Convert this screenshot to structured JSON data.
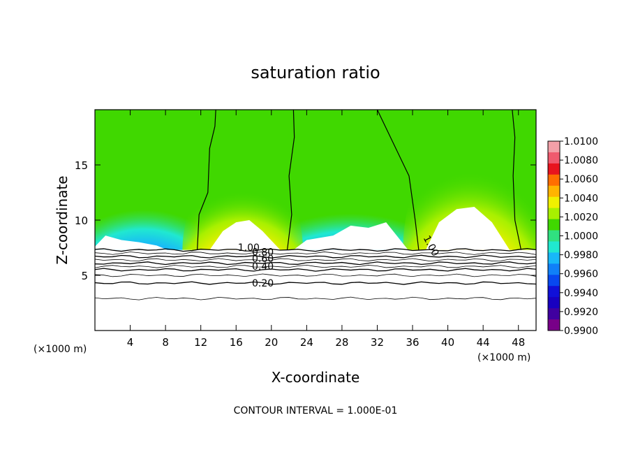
{
  "chart_data": {
    "type": "heatmap",
    "title": "saturation ratio",
    "xlabel": "X-coordinate",
    "ylabel": "Z-coordinate",
    "x_unit": "(×1000 m)",
    "y_unit": "(×1000 m)",
    "xlim": [
      0,
      50
    ],
    "ylim": [
      0,
      20
    ],
    "x_ticks": [
      4,
      8,
      12,
      16,
      20,
      24,
      28,
      32,
      36,
      40,
      44,
      48
    ],
    "y_ticks": [
      5,
      10,
      15
    ],
    "colorbar": {
      "ticks": [
        "1.0100",
        "1.0080",
        "1.0060",
        "1.0040",
        "1.0020",
        "1.0000",
        "0.9980",
        "0.9960",
        "0.9940",
        "0.9920",
        "0.9900"
      ],
      "colors": [
        "#f2a0a8",
        "#f05a6e",
        "#e8141e",
        "#ff6e00",
        "#ffb400",
        "#f0f000",
        "#a8f000",
        "#40d800",
        "#30e080",
        "#20e8d0",
        "#18b8f8",
        "#1080f8",
        "#0848f0",
        "#1010d8",
        "#1800c0",
        "#4000a0",
        "#780088"
      ]
    },
    "contour_labels": [
      {
        "text": "1.00",
        "x": 16.2,
        "z": 7.2
      },
      {
        "text": "0.80",
        "x": 17.8,
        "z": 6.8
      },
      {
        "text": "0.60",
        "x": 17.8,
        "z": 6.2
      },
      {
        "text": "0.40",
        "x": 17.8,
        "z": 5.5
      },
      {
        "text": "0.20",
        "x": 17.8,
        "z": 4.0
      },
      {
        "text": "1.00",
        "x": 37.2,
        "z": 8.4
      }
    ],
    "contour_levels_below": [
      1.0,
      0.9,
      0.8,
      0.7,
      0.6,
      0.5,
      0.4,
      0.3,
      0.2,
      0.1
    ],
    "footer": "CONTOUR INTERVAL = 1.000E-01"
  }
}
